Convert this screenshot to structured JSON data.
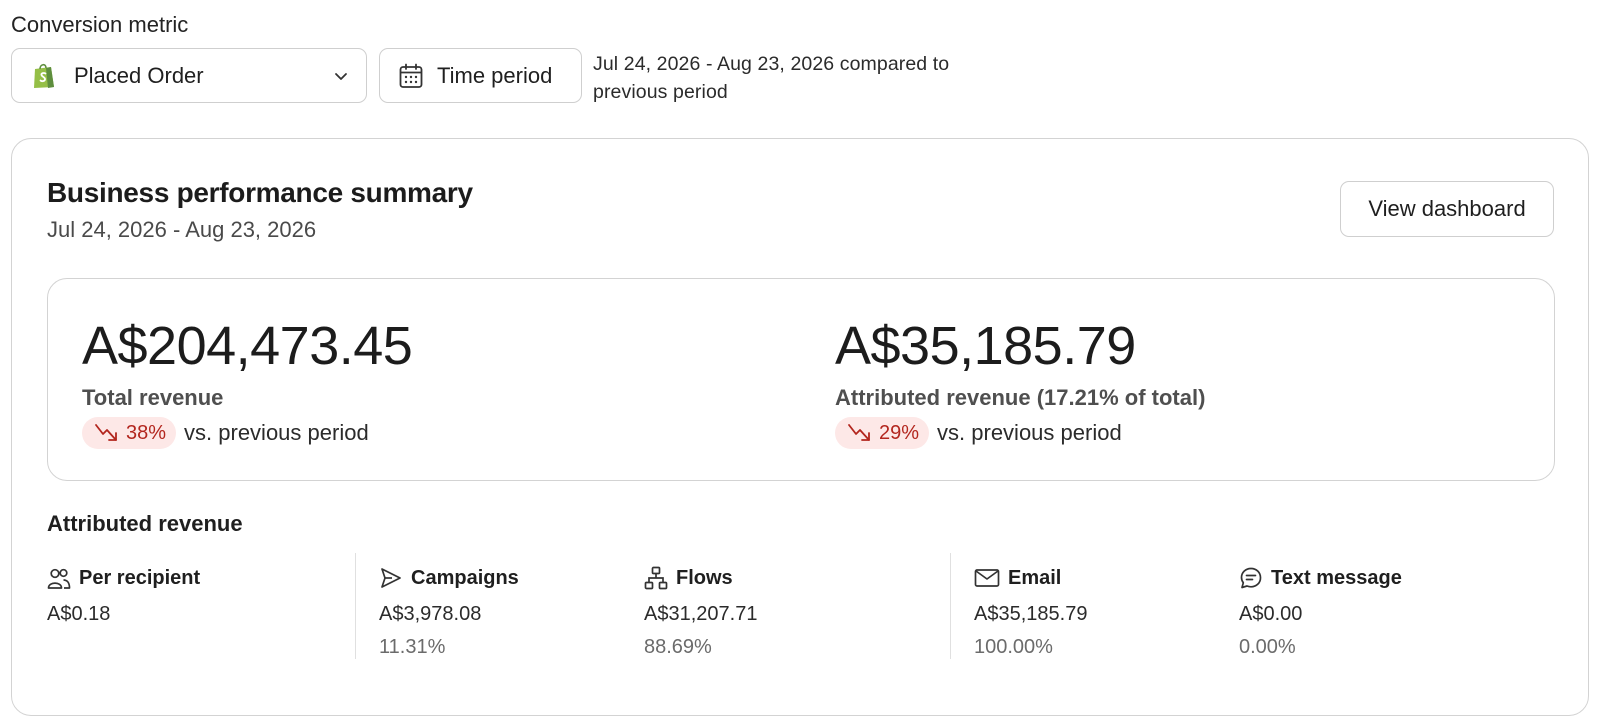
{
  "conversion_metric": {
    "label": "Conversion metric",
    "selected": "Placed Order",
    "icon": "shopify-bag-icon"
  },
  "time_period": {
    "button_label": "Time period",
    "description": "Jul 24, 2026 - Aug 23, 2026 compared to previous period"
  },
  "summary": {
    "title": "Business performance summary",
    "date_range": "Jul 24, 2026 - Aug 23, 2026",
    "view_dashboard_label": "View dashboard",
    "total": {
      "value": "A$204,473.45",
      "caption": "Total revenue",
      "delta": "38%",
      "direction": "down",
      "vs_text": "vs. previous period"
    },
    "attributed": {
      "value": "A$35,185.79",
      "caption": "Attributed revenue (17.21% of total)",
      "delta": "29%",
      "direction": "down",
      "vs_text": "vs. previous period"
    }
  },
  "attributed_revenue": {
    "heading": "Attributed revenue",
    "columns": [
      {
        "label": "Per recipient",
        "icon": "people-icon",
        "value": "A$0.18",
        "percent": ""
      },
      {
        "label": "Campaigns",
        "icon": "send-icon",
        "value": "A$3,978.08",
        "percent": "11.31%"
      },
      {
        "label": "Flows",
        "icon": "flow-tree-icon",
        "value": "A$31,207.71",
        "percent": "88.69%"
      },
      {
        "label": "Email",
        "icon": "envelope-icon",
        "value": "A$35,185.79",
        "percent": "100.00%"
      },
      {
        "label": "Text message",
        "icon": "chat-bubble-icon",
        "value": "A$0.00",
        "percent": "0.00%"
      }
    ]
  },
  "colors": {
    "negative_pill_bg": "#fde8e7",
    "negative_text": "#b3261e",
    "shopify_green": "#95bf47",
    "border": "#d3d3d3"
  }
}
